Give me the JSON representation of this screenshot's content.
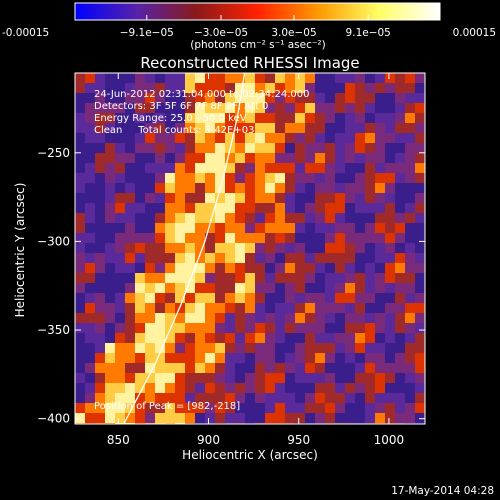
{
  "chart_data": {
    "type": "heatmap",
    "title": "Reconstructed RHESSI Image",
    "xlabel": "Heliocentric X (arcsec)",
    "ylabel": "Heliocentric Y (arcsec)",
    "xlim": [
      826,
      1020
    ],
    "ylim": [
      -403,
      -205
    ],
    "x_ticks": [
      850,
      900,
      950,
      1000
    ],
    "y_ticks": [
      -250,
      -300,
      -350,
      -400
    ],
    "colorbar": {
      "min": -0.00015,
      "max": 0.00015,
      "tick_values": [
        -0.00015,
        -9.1e-05,
        -3e-05,
        3e-05,
        9.1e-05,
        0.00015
      ],
      "tick_labels": [
        "-0.00015",
        "−9.1e−05",
        "−3.0e−05",
        "3.0e−05",
        "9.1e−05",
        "0.00015"
      ],
      "unit_label": "(photons cm⁻² s⁻¹ asec⁻²)",
      "gradient_colors": [
        "#0000ff",
        "#5522aa",
        "#8a1a1a",
        "#ff2200",
        "#ff9900",
        "#ffff66",
        "#ffffff"
      ]
    },
    "annotations": [
      "24-Jun-2012 02:31:04.000 to 02:34:24.000",
      "Detectors: 3F 5F 6F 7F 8F 9F, Att 0",
      "Energy Range: 25.0 - 50.0 keV",
      "Clean     Total counts: 3.42E+03"
    ],
    "peak_label": "Position of Peak = [982,-218]",
    "peak": [
      982,
      -218
    ],
    "limb_points": [
      [
        853,
        -403
      ],
      [
        870,
        -370
      ],
      [
        885,
        -335
      ],
      [
        898,
        -300
      ],
      [
        908,
        -265
      ],
      [
        916,
        -230
      ],
      [
        920,
        -205
      ]
    ],
    "limb_color": "#ffffff",
    "image_palette": [
      "#3a1f8c",
      "#5a2a9a",
      "#7a2a7a",
      "#a02a2a",
      "#dd3300",
      "#ff7a00",
      "#ffcc44",
      "#fff2a0"
    ]
  },
  "footer": {
    "timestamp": "17-May-2014 04:28"
  }
}
